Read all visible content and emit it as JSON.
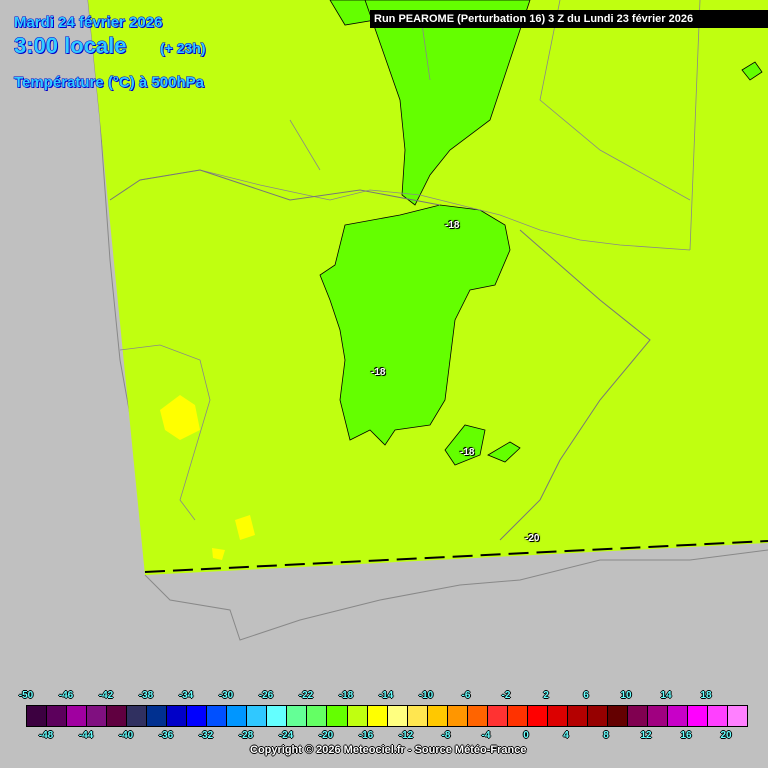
{
  "header": {
    "date": "Mardi 24 février 2026",
    "time": "3:00 locale",
    "lead": "(+ 23h)",
    "parameter": "Température (°C) à 500hPa",
    "run": "Run PEAROME (Perturbation 16) 3 Z du Lundi 23 février 2026"
  },
  "contour_labels": [
    "-18",
    "-18",
    "-18",
    "-20"
  ],
  "colorbar": {
    "top_labels": [
      "-50",
      "-46",
      "-42",
      "-38",
      "-34",
      "-30",
      "-26",
      "-22",
      "-18",
      "-14",
      "-10",
      "-6",
      "-2",
      "2",
      "6",
      "10",
      "14",
      "18"
    ],
    "bottom_labels": [
      "-48",
      "-44",
      "-40",
      "-36",
      "-32",
      "-28",
      "-24",
      "-20",
      "-16",
      "-12",
      "-8",
      "-4",
      "0",
      "4",
      "8",
      "12",
      "16",
      "20"
    ],
    "colors": [
      "#3c0040",
      "#5c005c",
      "#a000a0",
      "#801080",
      "#600040",
      "#303060",
      "#003090",
      "#0000c8",
      "#0000ff",
      "#0050ff",
      "#0096ff",
      "#30c8ff",
      "#64ffff",
      "#64ff96",
      "#64ff64",
      "#64ff00",
      "#c0ff10",
      "#ffff00",
      "#ffff80",
      "#ffe650",
      "#ffc800",
      "#ff9600",
      "#ff6400",
      "#ff3232",
      "#ff3200",
      "#ff0000",
      "#dc0000",
      "#b40000",
      "#960000",
      "#640000",
      "#800050",
      "#a00080",
      "#c800c8",
      "#ff00ff",
      "#ff40ff",
      "#ff80ff"
    ]
  },
  "copyright": "Copyright © 2026 Meteociel.fr - Source Météo-France"
}
